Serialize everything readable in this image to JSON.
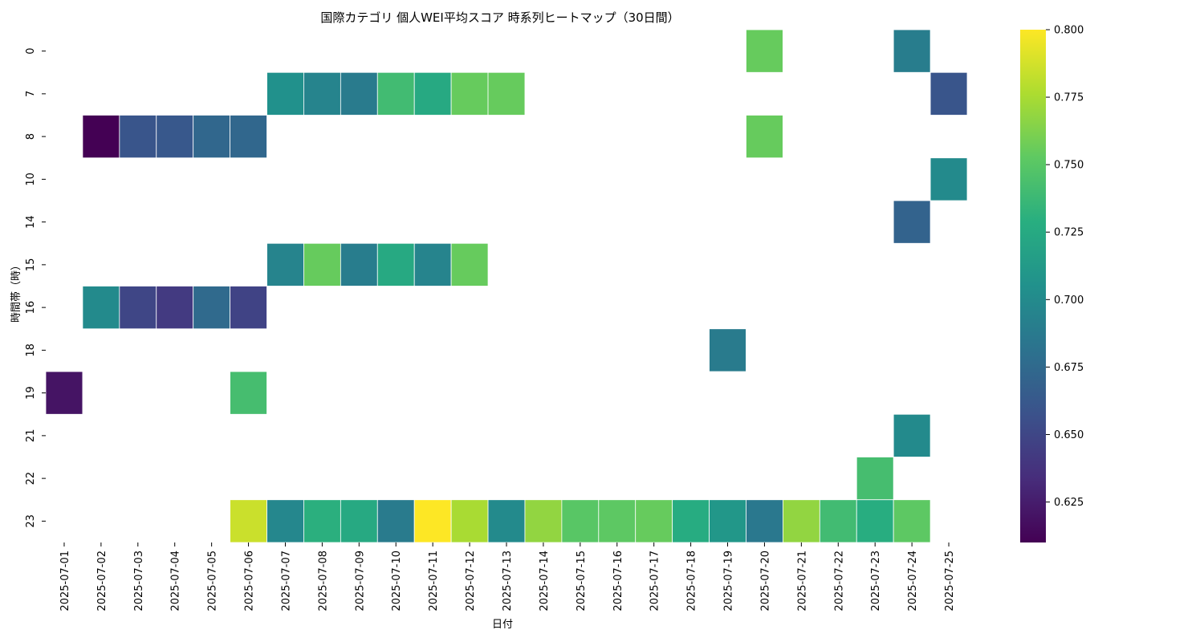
{
  "chart_data": {
    "type": "heatmap",
    "title": "国際カテゴリ 個人WEI平均スコア 時系列ヒートマップ（30日間）",
    "xlabel": "日付",
    "ylabel": "時間帯（時）",
    "x": [
      "2025-07-01",
      "2025-07-02",
      "2025-07-03",
      "2025-07-04",
      "2025-07-05",
      "2025-07-06",
      "2025-07-07",
      "2025-07-08",
      "2025-07-09",
      "2025-07-10",
      "2025-07-11",
      "2025-07-12",
      "2025-07-13",
      "2025-07-14",
      "2025-07-15",
      "2025-07-16",
      "2025-07-17",
      "2025-07-18",
      "2025-07-19",
      "2025-07-20",
      "2025-07-21",
      "2025-07-22",
      "2025-07-23",
      "2025-07-24",
      "2025-07-25"
    ],
    "y": [
      "0",
      "7",
      "8",
      "10",
      "14",
      "15",
      "16",
      "18",
      "19",
      "21",
      "22",
      "23"
    ],
    "colorscale": "viridis",
    "vmin": 0.61,
    "vmax": 0.8,
    "colorbar_ticks": [
      "0.625",
      "0.650",
      "0.675",
      "0.700",
      "0.725",
      "0.750",
      "0.775",
      "0.800"
    ],
    "cells": [
      {
        "x": "2025-07-20",
        "y": "0",
        "value": 0.755
      },
      {
        "x": "2025-07-24",
        "y": "0",
        "value": 0.69
      },
      {
        "x": "2025-07-07",
        "y": "7",
        "value": 0.705
      },
      {
        "x": "2025-07-08",
        "y": "7",
        "value": 0.695
      },
      {
        "x": "2025-07-09",
        "y": "7",
        "value": 0.688
      },
      {
        "x": "2025-07-10",
        "y": "7",
        "value": 0.74
      },
      {
        "x": "2025-07-11",
        "y": "7",
        "value": 0.725
      },
      {
        "x": "2025-07-12",
        "y": "7",
        "value": 0.755
      },
      {
        "x": "2025-07-13",
        "y": "7",
        "value": 0.755
      },
      {
        "x": "2025-07-25",
        "y": "7",
        "value": 0.66
      },
      {
        "x": "2025-07-02",
        "y": "8",
        "value": 0.61
      },
      {
        "x": "2025-07-03",
        "y": "8",
        "value": 0.66
      },
      {
        "x": "2025-07-04",
        "y": "8",
        "value": 0.662
      },
      {
        "x": "2025-07-05",
        "y": "8",
        "value": 0.673
      },
      {
        "x": "2025-07-06",
        "y": "8",
        "value": 0.673
      },
      {
        "x": "2025-07-20",
        "y": "8",
        "value": 0.755
      },
      {
        "x": "2025-07-25",
        "y": "10",
        "value": 0.7
      },
      {
        "x": "2025-07-24",
        "y": "14",
        "value": 0.67
      },
      {
        "x": "2025-07-07",
        "y": "15",
        "value": 0.695
      },
      {
        "x": "2025-07-08",
        "y": "15",
        "value": 0.755
      },
      {
        "x": "2025-07-09",
        "y": "15",
        "value": 0.69
      },
      {
        "x": "2025-07-10",
        "y": "15",
        "value": 0.725
      },
      {
        "x": "2025-07-11",
        "y": "15",
        "value": 0.695
      },
      {
        "x": "2025-07-12",
        "y": "15",
        "value": 0.755
      },
      {
        "x": "2025-07-02",
        "y": "16",
        "value": 0.7
      },
      {
        "x": "2025-07-03",
        "y": "16",
        "value": 0.65
      },
      {
        "x": "2025-07-04",
        "y": "16",
        "value": 0.642
      },
      {
        "x": "2025-07-05",
        "y": "16",
        "value": 0.675
      },
      {
        "x": "2025-07-06",
        "y": "16",
        "value": 0.648
      },
      {
        "x": "2025-07-19",
        "y": "18",
        "value": 0.688
      },
      {
        "x": "2025-07-01",
        "y": "19",
        "value": 0.62
      },
      {
        "x": "2025-07-06",
        "y": "19",
        "value": 0.742
      },
      {
        "x": "2025-07-24",
        "y": "21",
        "value": 0.7
      },
      {
        "x": "2025-07-23",
        "y": "22",
        "value": 0.742
      },
      {
        "x": "2025-07-06",
        "y": "23",
        "value": 0.785
      },
      {
        "x": "2025-07-07",
        "y": "23",
        "value": 0.697
      },
      {
        "x": "2025-07-08",
        "y": "23",
        "value": 0.73
      },
      {
        "x": "2025-07-09",
        "y": "23",
        "value": 0.725
      },
      {
        "x": "2025-07-10",
        "y": "23",
        "value": 0.688
      },
      {
        "x": "2025-07-11",
        "y": "23",
        "value": 0.8
      },
      {
        "x": "2025-07-12",
        "y": "23",
        "value": 0.775
      },
      {
        "x": "2025-07-13",
        "y": "23",
        "value": 0.7
      },
      {
        "x": "2025-07-14",
        "y": "23",
        "value": 0.768
      },
      {
        "x": "2025-07-15",
        "y": "23",
        "value": 0.75
      },
      {
        "x": "2025-07-16",
        "y": "23",
        "value": 0.752
      },
      {
        "x": "2025-07-17",
        "y": "23",
        "value": 0.755
      },
      {
        "x": "2025-07-18",
        "y": "23",
        "value": 0.727
      },
      {
        "x": "2025-07-19",
        "y": "23",
        "value": 0.71
      },
      {
        "x": "2025-07-20",
        "y": "23",
        "value": 0.686
      },
      {
        "x": "2025-07-21",
        "y": "23",
        "value": 0.768
      },
      {
        "x": "2025-07-22",
        "y": "23",
        "value": 0.74
      },
      {
        "x": "2025-07-23",
        "y": "23",
        "value": 0.728
      },
      {
        "x": "2025-07-24",
        "y": "23",
        "value": 0.752
      }
    ]
  }
}
